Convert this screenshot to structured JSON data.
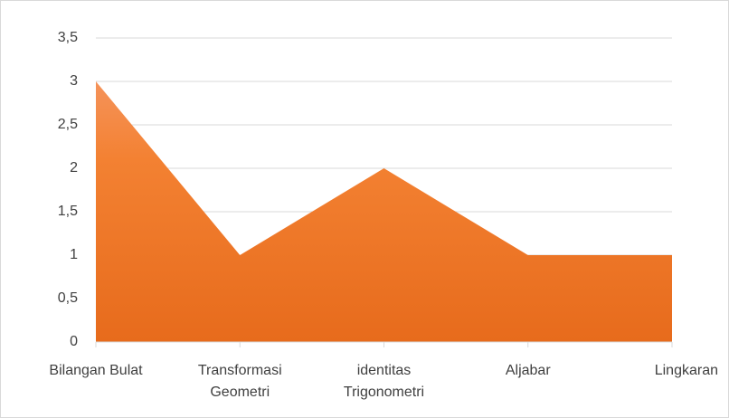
{
  "chart_data": {
    "type": "area",
    "categories": [
      "Bilangan Bulat",
      "Transformasi Geometri",
      "identitas Trigonometri",
      "Aljabar",
      "Lingkaran"
    ],
    "values": [
      3,
      1,
      2,
      1,
      1
    ],
    "color": "#ee7a2a",
    "ylim": [
      0,
      3.5
    ],
    "yticks": [
      0,
      {
        "value": 0.5,
        "label": "0,5"
      },
      1,
      {
        "value": 1.5,
        "label": "1,5"
      },
      2,
      {
        "value": 2.5,
        "label": "2,5"
      },
      3,
      {
        "value": 3.5,
        "label": "3,5"
      }
    ],
    "grid": true
  }
}
